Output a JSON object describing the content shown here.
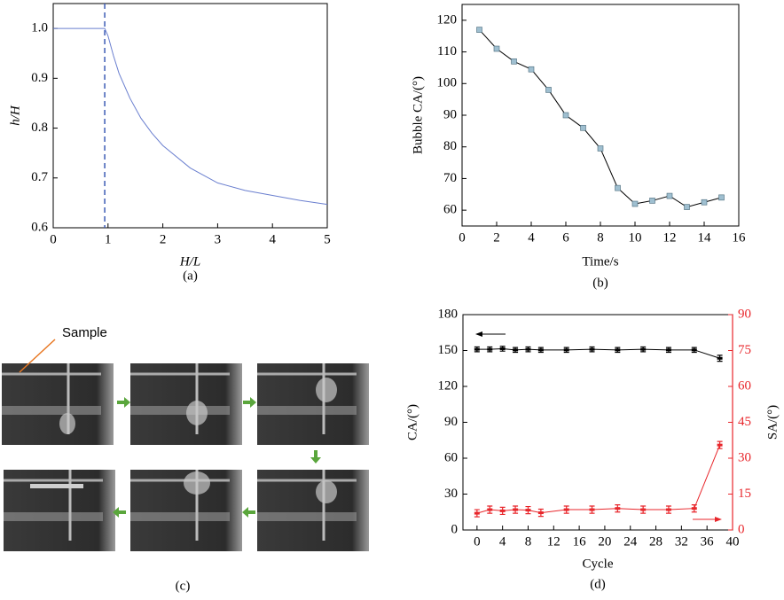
{
  "chart_data": [
    {
      "type": "line",
      "caption": "(a)",
      "x_label": "H/L",
      "y_label": "h/H",
      "italic_labels": true,
      "x": [
        0,
        0.94,
        1.0,
        1.1,
        1.2,
        1.4,
        1.6,
        1.8,
        2.0,
        2.5,
        3.0,
        3.5,
        4.0,
        4.5,
        5.0
      ],
      "series": [
        {
          "color": "#6a7fcf",
          "values": [
            1,
            1,
            0.985,
            0.945,
            0.91,
            0.86,
            0.82,
            0.79,
            0.765,
            0.72,
            0.69,
            0.675,
            0.665,
            0.655,
            0.647
          ]
        }
      ],
      "vline": {
        "x": 0.94,
        "color": "#3b5bb5",
        "dashed": true
      },
      "xlim": [
        0,
        5
      ],
      "ylim": [
        0.6,
        1.05
      ],
      "xticks": [
        0,
        1,
        2,
        3,
        4,
        5
      ],
      "yticks": [
        0.6,
        0.7,
        0.8,
        0.9,
        {
          "value": 1,
          "label": "1.0"
        }
      ]
    },
    {
      "type": "line",
      "caption": "(b)",
      "x_label": "Time/s",
      "y_label": "Bubble CA/(°)",
      "x": [
        1,
        2,
        3,
        4,
        5,
        6,
        7,
        8,
        9,
        10,
        11,
        12,
        13,
        14,
        15
      ],
      "series": [
        {
          "color": "#000000",
          "marker": "square",
          "marker_color": "#9fbfd0",
          "values": [
            117,
            111,
            107,
            104.5,
            98,
            90,
            86,
            79.5,
            67,
            62,
            63,
            64.5,
            61,
            62.5,
            64
          ]
        }
      ],
      "xlim": [
        0,
        16
      ],
      "ylim": [
        55,
        125
      ],
      "xticks": [
        0,
        2,
        4,
        6,
        8,
        10,
        12,
        14,
        16
      ],
      "yticks": [
        60,
        70,
        80,
        90,
        100,
        110,
        120
      ]
    },
    {
      "type": "line",
      "caption": "(d)",
      "x_label": "Cycle",
      "y_label": "CA/(°)",
      "y2_label": "SA/(°)",
      "y2_color": "#e8262b",
      "x": [
        0,
        2,
        4,
        6,
        8,
        10,
        14,
        18,
        22,
        26,
        30,
        34,
        38
      ],
      "series": [
        {
          "color": "#000000",
          "marker": "dash",
          "values": [
            151,
            151,
            151.5,
            150.5,
            151,
            150.5,
            150.5,
            151,
            150.5,
            151,
            150.5,
            150.5,
            143.5
          ],
          "errors": [
            2,
            2,
            2,
            2,
            2,
            2,
            2,
            2,
            2,
            2,
            2,
            2,
            2.5
          ]
        },
        {
          "color": "#e8262b",
          "marker": "dash",
          "axis": "y2",
          "values": [
            7,
            8.5,
            8,
            8.5,
            8.3,
            7.2,
            8.5,
            8.5,
            9,
            8.5,
            8.5,
            9,
            35.5
          ],
          "errors": [
            1.5,
            1.5,
            1.5,
            1.5,
            1.5,
            1.5,
            1.5,
            1.5,
            1.5,
            1.5,
            1.5,
            1.5,
            1.5
          ]
        }
      ],
      "xlim": [
        -2.2,
        40
      ],
      "ylim": [
        0,
        180
      ],
      "y2lim": [
        0,
        90
      ],
      "xticks": [
        0,
        4,
        8,
        12,
        16,
        20,
        24,
        28,
        32,
        36,
        40
      ],
      "yticks": [
        0,
        30,
        60,
        90,
        120,
        150,
        180
      ],
      "y2ticks": [
        0,
        15,
        30,
        45,
        60,
        75,
        90
      ]
    }
  ],
  "photo_panel": {
    "annotation": "Sample",
    "caption": "(c)"
  }
}
